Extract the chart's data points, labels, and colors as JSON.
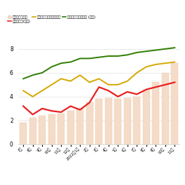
{
  "x_labels": [
    "7月",
    "8月",
    "9月",
    "10月",
    "11月",
    "12月",
    "2022年1月",
    "2月",
    "3月",
    "4月",
    "5月",
    "6月",
    "7月",
    "8月",
    "9月",
    "10月",
    "11月"
  ],
  "bar_values": [
    1.8,
    2.2,
    2.4,
    2.5,
    2.6,
    2.8,
    3.0,
    3.5,
    3.8,
    3.9,
    3.8,
    3.9,
    4.0,
    4.5,
    5.2,
    6.0,
    6.8
  ],
  "red_line": [
    3.2,
    2.5,
    3.0,
    2.8,
    2.7,
    3.2,
    2.9,
    3.5,
    4.8,
    4.5,
    4.0,
    4.4,
    4.2,
    4.6,
    4.8,
    5.0,
    5.2
  ],
  "yellow_line": [
    4.5,
    4.0,
    4.5,
    5.0,
    5.5,
    5.3,
    5.8,
    5.2,
    5.5,
    5.0,
    5.0,
    5.3,
    6.0,
    6.5,
    6.7,
    6.8,
    6.9
  ],
  "green_line": [
    5.5,
    5.8,
    6.0,
    6.5,
    6.8,
    6.9,
    7.2,
    7.2,
    7.3,
    7.4,
    7.4,
    7.5,
    7.7,
    7.8,
    7.9,
    8.0,
    8.1
  ],
  "bar_color": "#f5dcc8",
  "bar_edge_color": "#e8c9a8",
  "red_color": "#e82020",
  "yellow_color": "#d4a800",
  "green_color": "#2e7d00",
  "legend_items": [
    "販売中の物件数",
    "成約㎡単価(万円)",
    "新規売出し物件の㎡単価",
    "販売中物件の㎡単価 (万円)"
  ],
  "bg_color": "#ffffff",
  "grid_color": "#e0e0e0",
  "ytick_labels": [
    "0",
    "2",
    "4",
    "6",
    "8"
  ],
  "ytick_values": [
    0,
    2,
    4,
    6,
    8
  ]
}
